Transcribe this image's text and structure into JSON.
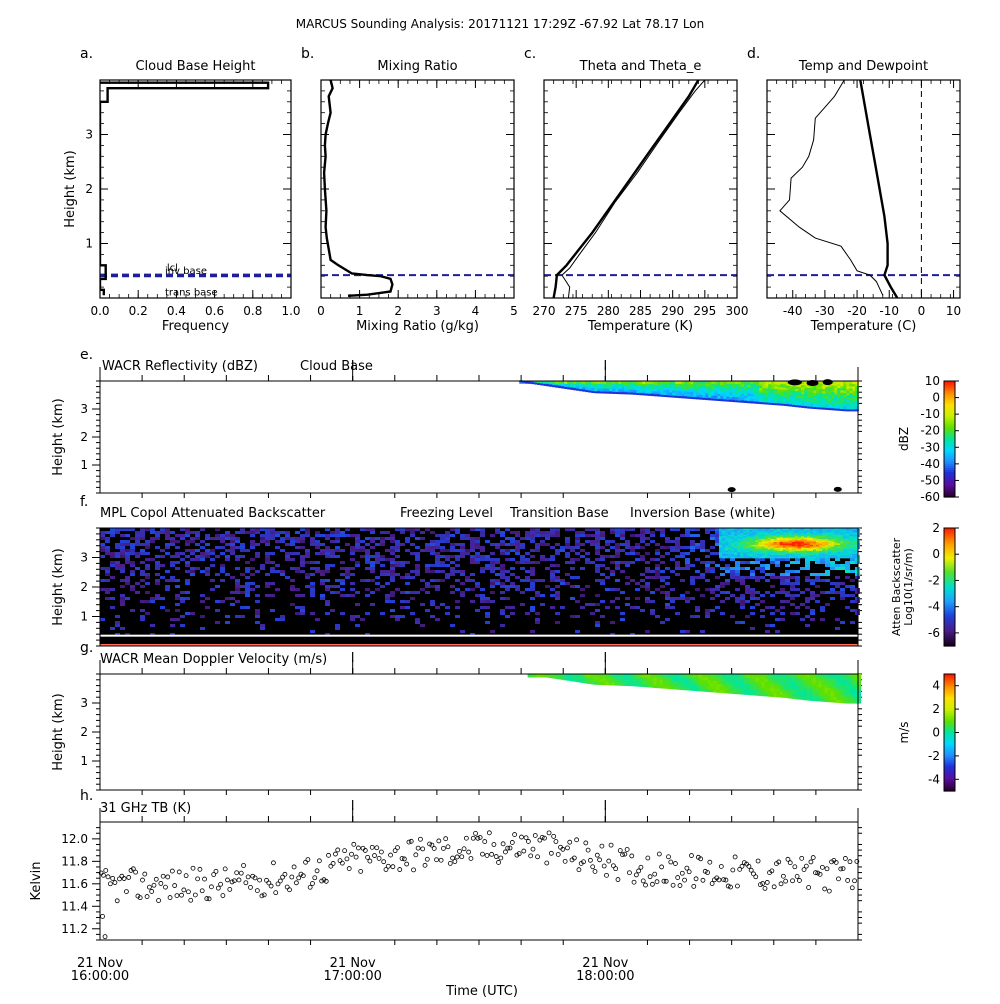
{
  "title": "MARCUS Sounding Analysis: 20171121 17:29Z   -67.92 Lat   78.17 Lon",
  "colors": {
    "cloud_base_line": "#1e1e9c",
    "freezing_level": "#87cefa",
    "transition_base": "#ff6a50",
    "inversion_base": "#ffffff",
    "refl_cmap": [
      "#2b0033",
      "#5a0ea0",
      "#1f2fd8",
      "#1e90ff",
      "#00d8ff",
      "#00e5a0",
      "#60e000",
      "#c8f000",
      "#ffe000",
      "#ff8c00",
      "#ff1a00"
    ],
    "back_cmap": [
      "#1a001f",
      "#4a1e8c",
      "#2040d8",
      "#1fa0ff",
      "#00e0d0",
      "#50e030",
      "#f0f000",
      "#ff9a00",
      "#ff2000"
    ],
    "vel_cmap": [
      "#2b0033",
      "#5a0ea0",
      "#1f2fd8",
      "#1e90ff",
      "#00d8ff",
      "#00e5a0",
      "#60e000",
      "#c8f000",
      "#ffe000",
      "#ff8c00",
      "#ff1a00"
    ]
  },
  "chart_data": [
    {
      "id": "a",
      "type": "line",
      "panel_letter": "a.",
      "title": "Cloud Base Height",
      "xlabel": "Frequency",
      "ylabel": "Height (km)",
      "xlim": [
        0,
        1
      ],
      "ylim": [
        0,
        4
      ],
      "xticks": [
        0.0,
        0.2,
        0.4,
        0.6,
        0.8,
        1.0
      ],
      "xtick_labels": [
        "0.0",
        "0.2",
        "0.4",
        "0.6",
        "0.8",
        "1.0"
      ],
      "yticks": [
        1,
        2,
        3
      ],
      "ytick_labels": [
        "1",
        "2",
        "3"
      ],
      "series": [
        {
          "style": "thick",
          "points": [
            [
              0,
              3.95
            ],
            [
              0.88,
              3.95
            ],
            [
              0.88,
              3.85
            ],
            [
              0.04,
              3.85
            ],
            [
              0.04,
              3.6
            ],
            [
              0,
              3.6
            ],
            [
              0,
              0.6
            ],
            [
              0.03,
              0.6
            ],
            [
              0.03,
              0.35
            ],
            [
              0,
              0.35
            ],
            [
              0,
              0.15
            ],
            [
              0.02,
              0.15
            ],
            [
              0.02,
              0.05
            ]
          ]
        }
      ],
      "hlines": [
        0.43,
        0.4
      ],
      "annotations": [
        {
          "text": "lcl",
          "x": 0.35,
          "y": 0.5,
          "color": "#1e1e9c"
        },
        {
          "text": "inv base",
          "x": 0.34,
          "y": 0.44
        },
        {
          "text": "trans base",
          "x": 0.34,
          "y": 0.05
        }
      ]
    },
    {
      "id": "b",
      "type": "line",
      "panel_letter": "b.",
      "title": "Mixing Ratio",
      "xlabel": "Mixing Ratio (g/kg)",
      "xlim": [
        0,
        5
      ],
      "ylim": [
        0,
        4
      ],
      "xticks": [
        0,
        1,
        2,
        3,
        4,
        5
      ],
      "xtick_labels": [
        "0",
        "1",
        "2",
        "3",
        "4",
        "5"
      ],
      "yticks": [
        1,
        2,
        3
      ],
      "series": [
        {
          "style": "thick",
          "points": [
            [
              0.25,
              4.0
            ],
            [
              0.3,
              3.85
            ],
            [
              0.2,
              3.7
            ],
            [
              0.25,
              3.4
            ],
            [
              0.18,
              3.2
            ],
            [
              0.12,
              3.0
            ],
            [
              0.1,
              2.8
            ],
            [
              0.12,
              2.6
            ],
            [
              0.08,
              2.3
            ],
            [
              0.1,
              2.0
            ],
            [
              0.14,
              1.6
            ],
            [
              0.12,
              1.3
            ],
            [
              0.15,
              1.1
            ],
            [
              0.2,
              0.9
            ],
            [
              0.25,
              0.7
            ],
            [
              0.45,
              0.6
            ],
            [
              0.8,
              0.45
            ],
            [
              1.2,
              0.42
            ],
            [
              1.55,
              0.4
            ],
            [
              1.8,
              0.35
            ],
            [
              1.85,
              0.25
            ],
            [
              1.8,
              0.12
            ],
            [
              1.2,
              0.06
            ],
            [
              0.7,
              0.04
            ]
          ]
        }
      ],
      "hlines": [
        0.42
      ]
    },
    {
      "id": "c",
      "type": "line",
      "panel_letter": "c.",
      "title": "Theta and Theta_e",
      "xlabel": "Temperature (K)",
      "xlim": [
        270,
        300
      ],
      "ylim": [
        0,
        4
      ],
      "xticks": [
        270,
        275,
        280,
        285,
        290,
        295,
        300
      ],
      "xtick_labels": [
        "270",
        "275",
        "280",
        "285",
        "290",
        "295",
        "300"
      ],
      "yticks": [
        1,
        2,
        3
      ],
      "series": [
        {
          "name": "theta",
          "style": "thick",
          "points": [
            [
              271.5,
              0.0
            ],
            [
              271.8,
              0.2
            ],
            [
              272.0,
              0.42
            ],
            [
              273.5,
              0.6
            ],
            [
              275.5,
              0.9
            ],
            [
              277.5,
              1.2
            ],
            [
              280.5,
              1.7
            ],
            [
              283.5,
              2.2
            ],
            [
              286.5,
              2.7
            ],
            [
              289.5,
              3.2
            ],
            [
              292.5,
              3.7
            ],
            [
              294.0,
              4.0
            ]
          ]
        },
        {
          "name": "theta_e",
          "style": "thin",
          "points": [
            [
              273.8,
              0.0
            ],
            [
              274.0,
              0.2
            ],
            [
              272.8,
              0.42
            ],
            [
              274.0,
              0.55
            ],
            [
              275.5,
              0.8
            ],
            [
              278.0,
              1.2
            ],
            [
              281.0,
              1.75
            ],
            [
              284.5,
              2.3
            ],
            [
              288.0,
              2.9
            ],
            [
              291.0,
              3.4
            ],
            [
              293.5,
              3.8
            ],
            [
              295.0,
              4.0
            ]
          ]
        }
      ],
      "hlines": [
        0.42
      ]
    },
    {
      "id": "d",
      "type": "line",
      "panel_letter": "d.",
      "title": "Temp and Dewpoint",
      "xlabel": "Temperature (C)",
      "xlim": [
        -48,
        12
      ],
      "ylim": [
        0,
        4
      ],
      "xticks": [
        -40,
        -30,
        -20,
        -10,
        0,
        10
      ],
      "xtick_labels": [
        "-40",
        "-30",
        "-20",
        "-10",
        "0",
        "10"
      ],
      "yticks": [
        1,
        2,
        3
      ],
      "series": [
        {
          "name": "temperature",
          "style": "thick",
          "points": [
            [
              -7.5,
              0.0
            ],
            [
              -9.5,
              0.2
            ],
            [
              -11.5,
              0.42
            ],
            [
              -10.5,
              0.6
            ],
            [
              -10.5,
              1.0
            ],
            [
              -11.5,
              1.5
            ],
            [
              -13.0,
              2.0
            ],
            [
              -14.5,
              2.5
            ],
            [
              -16.0,
              3.0
            ],
            [
              -17.5,
              3.5
            ],
            [
              -19.0,
              4.0
            ]
          ]
        },
        {
          "name": "dewpoint",
          "style": "thin",
          "points": [
            [
              -12.0,
              0.05
            ],
            [
              -14.0,
              0.3
            ],
            [
              -16.0,
              0.42
            ],
            [
              -20.0,
              0.5
            ],
            [
              -22.0,
              0.7
            ],
            [
              -25.0,
              0.95
            ],
            [
              -33.0,
              1.1
            ],
            [
              -38.0,
              1.3
            ],
            [
              -44.0,
              1.6
            ],
            [
              -41.0,
              1.8
            ],
            [
              -40.5,
              2.2
            ],
            [
              -37.0,
              2.4
            ],
            [
              -35.0,
              2.6
            ],
            [
              -33.5,
              2.9
            ],
            [
              -33.0,
              3.3
            ],
            [
              -30.0,
              3.5
            ],
            [
              -27.0,
              3.7
            ],
            [
              -25.0,
              3.9
            ],
            [
              -24.0,
              4.0
            ]
          ]
        }
      ],
      "vlines": [
        0
      ],
      "hlines": [
        0.42
      ]
    },
    {
      "id": "e",
      "type": "heatmap",
      "panel_letter": "e.",
      "title": "WACR Reflectivity (dBZ)",
      "extra_label": "Cloud Base",
      "ylabel": "Height (km)",
      "ylim": [
        0,
        4
      ],
      "yticks": [
        1,
        2,
        3
      ],
      "cloud_top_km": 4.0,
      "cloud_base_km": [
        [
          17.65,
          4.0
        ],
        [
          17.8,
          3.8
        ],
        [
          17.95,
          3.6
        ],
        [
          18.1,
          3.55
        ],
        [
          18.25,
          3.45
        ],
        [
          18.4,
          3.35
        ],
        [
          18.55,
          3.25
        ],
        [
          18.7,
          3.15
        ],
        [
          18.8,
          3.05
        ],
        [
          18.95,
          2.95
        ]
      ],
      "colorbar": {
        "label": "dBZ",
        "min": -60,
        "max": 10,
        "ticks": [
          10,
          0,
          -10,
          -20,
          -30,
          -40,
          -50,
          -60
        ],
        "tick_labels": [
          "10",
          "0",
          "-10",
          "-20",
          "-30",
          "-40",
          "-50",
          "-60"
        ]
      }
    },
    {
      "id": "f",
      "type": "heatmap",
      "panel_letter": "f.",
      "title": "MPL Copol Attenuated Backscatter",
      "legend_items": [
        {
          "text": "Freezing Level",
          "color": "#87cefa"
        },
        {
          "text": "Transition Base",
          "color": "#ff6a50"
        },
        {
          "text": "Inversion Base (white)",
          "color": "#000000"
        }
      ],
      "ylabel": "Height (km)",
      "ylim": [
        0,
        4
      ],
      "yticks": [
        1,
        2,
        3
      ],
      "inversion_base_km": 0.35,
      "transition_base_km": 0.05,
      "colorbar": {
        "label": "Atten Backscatter",
        "label2": "Log10(1/sr/m)",
        "min": -7,
        "max": 2,
        "ticks": [
          2,
          0,
          -2,
          -4,
          -6
        ],
        "tick_labels": [
          "2",
          "0",
          "-2",
          "-4",
          "-6"
        ]
      }
    },
    {
      "id": "g",
      "type": "heatmap",
      "panel_letter": "g.",
      "title": "WACR Mean Doppler Velocity (m/s)",
      "ylabel": "Height (km)",
      "ylim": [
        0,
        4
      ],
      "yticks": [
        1,
        2,
        3
      ],
      "colorbar": {
        "label": "m/s",
        "min": -5,
        "max": 5,
        "ticks": [
          4,
          2,
          0,
          -2,
          -4
        ],
        "tick_labels": [
          "4",
          "2",
          "0",
          "-2",
          "-4"
        ]
      }
    },
    {
      "id": "h",
      "type": "scatter",
      "panel_letter": "h.",
      "title": "31 GHz TB (K)",
      "ylabel": "Kelvin",
      "xlabel": "Time (UTC)",
      "xlim": [
        16.0,
        19.0
      ],
      "ylim": [
        11.1,
        12.15
      ],
      "yticks": [
        11.2,
        11.4,
        11.6,
        11.8,
        12.0
      ],
      "ytick_labels": [
        "11.2",
        "11.4",
        "11.6",
        "11.8",
        "12.0"
      ],
      "trend": [
        [
          16.0,
          11.58
        ],
        [
          16.5,
          11.6
        ],
        [
          16.8,
          11.68
        ],
        [
          17.0,
          11.82
        ],
        [
          17.4,
          11.9
        ],
        [
          17.7,
          11.95
        ],
        [
          17.9,
          11.85
        ],
        [
          18.2,
          11.72
        ],
        [
          18.5,
          11.7
        ],
        [
          19.0,
          11.68
        ]
      ],
      "point_count": 330,
      "time_ticks": [
        {
          "t": 16.0,
          "line1": "21 Nov",
          "line2": "16:00:00"
        },
        {
          "t": 17.0,
          "line1": "21 Nov",
          "line2": "17:00:00"
        },
        {
          "t": 18.0,
          "line1": "21 Nov",
          "line2": "18:00:00"
        }
      ]
    }
  ]
}
